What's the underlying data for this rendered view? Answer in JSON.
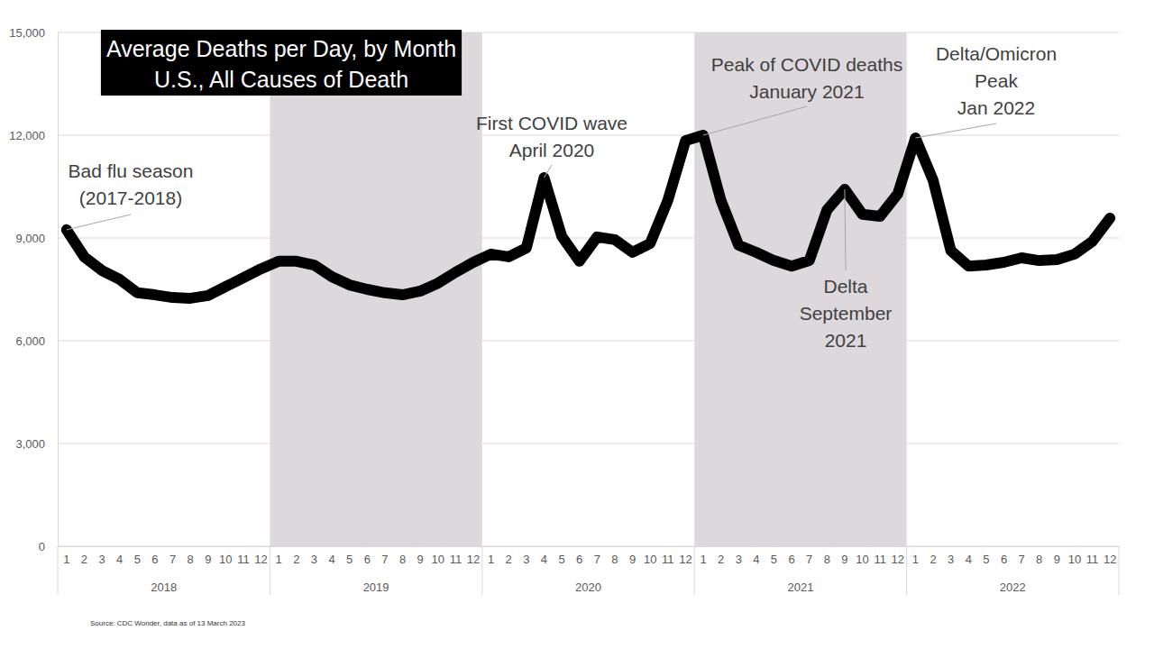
{
  "chart_data": {
    "type": "line",
    "title": "Average Deaths per Day, by Month",
    "subtitle": "U.S., All Causes of Death",
    "source": "Source: CDC Wonder, data as of 13 March 2023",
    "categories": [
      "1",
      "2",
      "3",
      "4",
      "5",
      "6",
      "7",
      "8",
      "9",
      "10",
      "11",
      "12",
      "1",
      "2",
      "3",
      "4",
      "5",
      "6",
      "7",
      "8",
      "9",
      "10",
      "11",
      "12",
      "1",
      "2",
      "3",
      "4",
      "5",
      "6",
      "7",
      "8",
      "9",
      "10",
      "11",
      "12",
      "1",
      "2",
      "3",
      "4",
      "5",
      "6",
      "7",
      "8",
      "9",
      "10",
      "11",
      "12",
      "1",
      "2",
      "3",
      "4",
      "5",
      "6",
      "7",
      "8",
      "9",
      "10",
      "11",
      "12"
    ],
    "year_groups": [
      {
        "label": "2018",
        "months": 12
      },
      {
        "label": "2019",
        "months": 12
      },
      {
        "label": "2020",
        "months": 12
      },
      {
        "label": "2021",
        "months": 12
      },
      {
        "label": "2022",
        "months": 12
      }
    ],
    "values": [
      9240,
      8450,
      8050,
      7790,
      7400,
      7340,
      7260,
      7240,
      7320,
      7580,
      7840,
      8100,
      8320,
      8320,
      8210,
      7870,
      7630,
      7500,
      7400,
      7340,
      7450,
      7680,
      8000,
      8290,
      8530,
      8450,
      8710,
      10760,
      9050,
      8320,
      9030,
      8950,
      8580,
      8840,
      10100,
      11840,
      12000,
      10100,
      8790,
      8580,
      8340,
      8180,
      8340,
      9820,
      10420,
      9690,
      9630,
      10290,
      11920,
      10680,
      8630,
      8180,
      8210,
      8290,
      8420,
      8340,
      8370,
      8530,
      8900,
      9580
    ],
    "color": "#000000",
    "ylim": [
      0,
      15000
    ],
    "yticks": [
      0,
      {
        "value": 3000,
        "label": "3,000"
      },
      {
        "value": 6000,
        "label": "6,000"
      },
      {
        "value": 9000,
        "label": "9,000"
      },
      {
        "value": 12000,
        "label": "12,000"
      },
      {
        "value": 15000,
        "label": "15,000"
      }
    ],
    "grid": true,
    "annotations": [
      {
        "lines": [
          "Bad flu season",
          "(2017-2018)"
        ],
        "point": 0
      },
      {
        "lines": [
          "First COVID wave",
          "April 2020"
        ],
        "point": 27
      },
      {
        "lines": [
          "Peak of COVID deaths",
          "January 2021"
        ],
        "point": 36
      },
      {
        "lines": [
          "Delta",
          "September",
          "2021"
        ],
        "point": 44
      },
      {
        "lines": [
          "Delta/Omicron",
          "Peak",
          "Jan 2022"
        ],
        "point": 48
      }
    ]
  }
}
